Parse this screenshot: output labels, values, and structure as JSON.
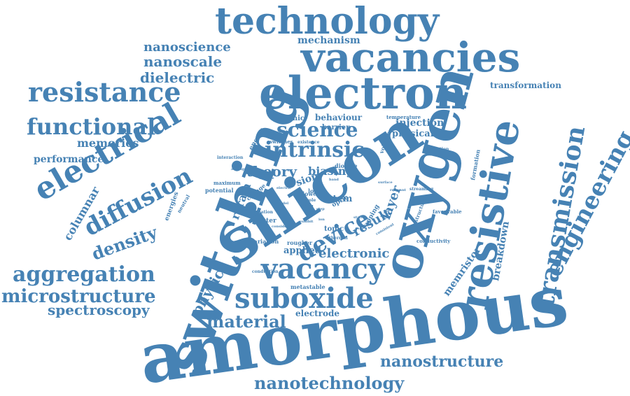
{
  "word_cloud": {
    "color": "#4682B4",
    "words": [
      "amorphous",
      "switching",
      "silicon",
      "oxygen",
      "electron",
      "vacancies",
      "technology",
      "resistive",
      "transmission",
      "resistance",
      "electrical",
      "engineering",
      "vacancy",
      "suboxide",
      "intrinsic",
      "science",
      "functional",
      "diffusion",
      "aggregation",
      "microstructure",
      "spectroscopy",
      "nanotechnology",
      "nanostructure",
      "device",
      "material",
      "density",
      "dielectric",
      "nanoscale",
      "nanoscience",
      "memories",
      "performance",
      "columnar",
      "theory",
      "physic",
      "electronic",
      "applied",
      "breakdown",
      "memristor",
      "result",
      "layer",
      "biasing",
      "mechanism",
      "transformation",
      "injection",
      "physical",
      "behaviour",
      "dynamic",
      "reram",
      "electrode",
      "metastable",
      "conductivity",
      "favourable",
      "sputter",
      "potential",
      "energies",
      "interaction",
      "variation",
      "topic",
      "trapping",
      "formation",
      "calculation",
      "temperature",
      "voltage",
      "energy",
      "maximum",
      "stem",
      "dioxide",
      "barrier",
      "switches",
      "existence",
      "change",
      "rougher",
      "lower",
      "thermal",
      "conduction",
      "optic",
      "loss",
      "neutral",
      "creation",
      "streaming",
      "relevant",
      "structural",
      "surface",
      "field",
      "consistent",
      "average",
      "role",
      "sion",
      "band",
      "observe",
      "height",
      "step",
      "electric",
      "consider",
      "exhibit",
      "model",
      "state",
      "ion"
    ]
  }
}
